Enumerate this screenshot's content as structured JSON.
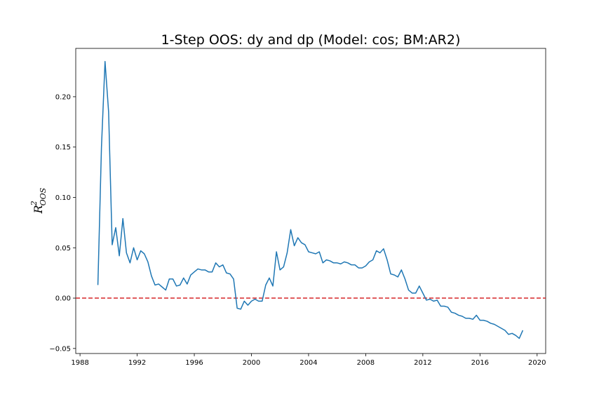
{
  "chart_data": {
    "type": "line",
    "title": "1-Step OOS: dy and dp (Model: cos; BM:AR2)",
    "xlabel": "",
    "ylabel": "R",
    "ylabel_sup": "2",
    "ylabel_sub": "OOS",
    "xlim": [
      1987.7,
      2020.6
    ],
    "ylim": [
      -0.055,
      0.248
    ],
    "x_ticks": [
      1988,
      1992,
      1996,
      2000,
      2004,
      2008,
      2012,
      2016,
      2020
    ],
    "x_tick_labels": [
      "1988",
      "1992",
      "1996",
      "2000",
      "2004",
      "2008",
      "2012",
      "2016",
      "2020"
    ],
    "y_ticks": [
      -0.05,
      0.0,
      0.05,
      0.1,
      0.15,
      0.2
    ],
    "y_tick_labels": [
      "−0.05",
      "0.00",
      "0.05",
      "0.10",
      "0.15",
      "0.20"
    ],
    "grid": false,
    "colors": {
      "series": "#1f77b4",
      "reference_line": "#d62728"
    },
    "reference_line": {
      "y": 0.0,
      "style": "dashed"
    },
    "series": [
      {
        "x": [
          1989.25,
          1989.5,
          1989.75,
          1990.0,
          1990.25,
          1990.5,
          1990.75,
          1991.0,
          1991.25,
          1991.5,
          1991.75,
          1992.0,
          1992.25,
          1992.5,
          1992.75,
          1993.0,
          1993.25,
          1993.5,
          1993.75,
          1994.0,
          1994.25,
          1994.5,
          1994.75,
          1995.0,
          1995.25,
          1995.5,
          1995.75,
          1996.0,
          1996.25,
          1996.5,
          1996.75,
          1997.0,
          1997.25,
          1997.5,
          1997.75,
          1998.0,
          1998.25,
          1998.5,
          1998.75,
          1999.0,
          1999.25,
          1999.5,
          1999.75,
          2000.0,
          2000.25,
          2000.5,
          2000.75,
          2001.0,
          2001.25,
          2001.5,
          2001.75,
          2002.0,
          2002.25,
          2002.5,
          2002.75,
          2003.0,
          2003.25,
          2003.5,
          2003.75,
          2004.0,
          2004.25,
          2004.5,
          2004.75,
          2005.0,
          2005.25,
          2005.5,
          2005.75,
          2006.0,
          2006.25,
          2006.5,
          2006.75,
          2007.0,
          2007.25,
          2007.5,
          2007.75,
          2008.0,
          2008.25,
          2008.5,
          2008.75,
          2009.0,
          2009.25,
          2009.5,
          2009.75,
          2010.0,
          2010.25,
          2010.5,
          2010.75,
          2011.0,
          2011.25,
          2011.5,
          2011.75,
          2012.0,
          2012.25,
          2012.5,
          2012.75,
          2013.0,
          2013.25,
          2013.5,
          2013.75,
          2014.0,
          2014.25,
          2014.5,
          2014.75,
          2015.0,
          2015.25,
          2015.5,
          2015.75,
          2016.0,
          2016.25,
          2016.5,
          2016.75,
          2017.0,
          2017.25,
          2017.5,
          2017.75,
          2018.0,
          2018.25,
          2018.5,
          2018.75,
          2019.0
        ],
        "values": [
          0.013,
          0.15,
          0.235,
          0.185,
          0.053,
          0.07,
          0.042,
          0.079,
          0.045,
          0.035,
          0.05,
          0.038,
          0.047,
          0.044,
          0.036,
          0.022,
          0.013,
          0.014,
          0.011,
          0.008,
          0.019,
          0.019,
          0.012,
          0.013,
          0.02,
          0.014,
          0.023,
          0.026,
          0.029,
          0.028,
          0.028,
          0.026,
          0.026,
          0.035,
          0.031,
          0.033,
          0.025,
          0.024,
          0.019,
          -0.01,
          -0.011,
          -0.003,
          -0.007,
          -0.003,
          -0.001,
          -0.003,
          -0.003,
          0.013,
          0.02,
          0.012,
          0.046,
          0.028,
          0.031,
          0.045,
          0.068,
          0.052,
          0.06,
          0.055,
          0.053,
          0.046,
          0.045,
          0.044,
          0.046,
          0.035,
          0.038,
          0.037,
          0.035,
          0.035,
          0.034,
          0.036,
          0.035,
          0.033,
          0.033,
          0.03,
          0.03,
          0.032,
          0.036,
          0.038,
          0.047,
          0.045,
          0.049,
          0.038,
          0.024,
          0.023,
          0.021,
          0.028,
          0.019,
          0.008,
          0.005,
          0.005,
          0.012,
          0.005,
          -0.002,
          -0.001,
          -0.003,
          -0.002,
          -0.008,
          -0.008,
          -0.009,
          -0.014,
          -0.015,
          -0.017,
          -0.018,
          -0.02,
          -0.02,
          -0.021,
          -0.017,
          -0.022,
          -0.022,
          -0.023,
          -0.025,
          -0.026,
          -0.028,
          -0.03,
          -0.032,
          -0.036,
          -0.035,
          -0.037,
          -0.04,
          -0.032
        ]
      }
    ]
  }
}
